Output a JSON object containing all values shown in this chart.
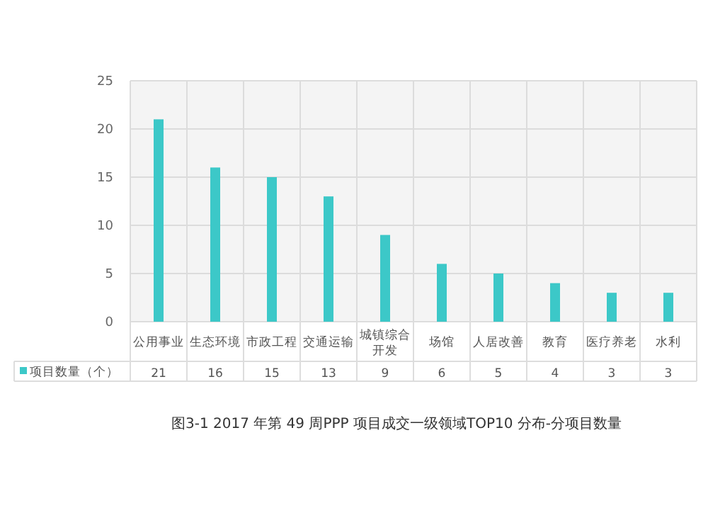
{
  "chart_data": {
    "type": "bar",
    "categories": [
      "公用事业",
      "生态环境",
      "市政工程",
      "交通运输",
      "城镇综合开发",
      "场馆",
      "人居改善",
      "教育",
      "医疗养老",
      "水利"
    ],
    "series": [
      {
        "name": "项目数量（个）",
        "color": "#3cc8c8",
        "values": [
          21,
          16,
          15,
          13,
          9,
          6,
          5,
          4,
          3,
          3
        ]
      }
    ],
    "ylim": [
      0,
      25
    ],
    "yticks": [
      0,
      5,
      10,
      15,
      20,
      25
    ],
    "grid": true,
    "data_labels": true,
    "legend": "bottom",
    "annotations": [
      "图3-1 2017 年第 49 周PPP 项目成交一级领域TOP10 分布-分项目数量"
    ]
  }
}
